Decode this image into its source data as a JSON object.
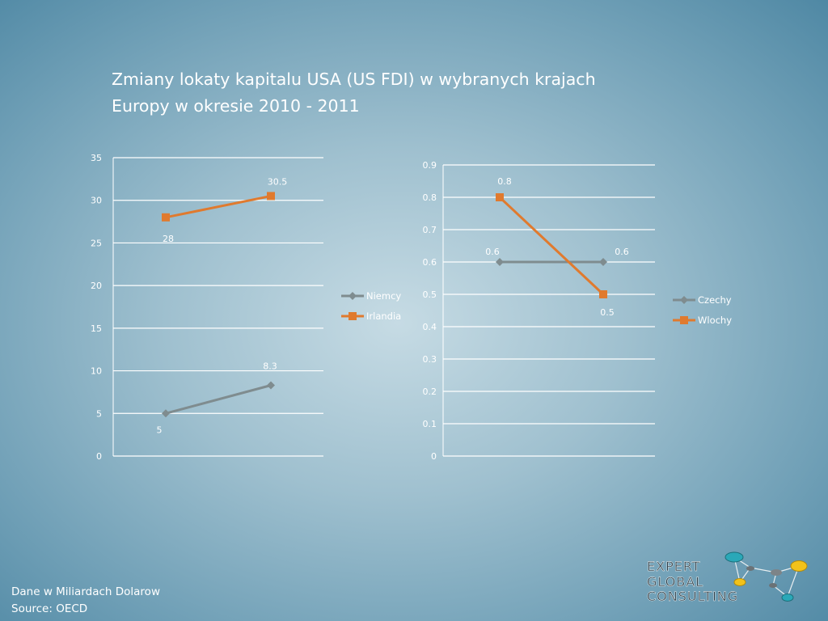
{
  "title_line1": "Zmiany lokaty kapitalu USA (US FDI) w wybranych krajach",
  "title_line2": "Europy w okresie 2010 - 2011",
  "footer": {
    "line1": "Dane w Miliardach Dolarow",
    "line2": "Source:  OECD"
  },
  "logo": {
    "line1": "EXPERT",
    "line2": "GLOBAL",
    "line3": "CONSULTING"
  },
  "colors": {
    "grey_series": "#7f8c8f",
    "orange_series": "#e07a2e"
  },
  "chart_data": [
    {
      "type": "line",
      "ylim": [
        0,
        35
      ],
      "yticks": [
        "0",
        "5",
        "10",
        "15",
        "20",
        "25",
        "30",
        "35"
      ],
      "series": [
        {
          "name": "Niemcy",
          "values": [
            5,
            8.3
          ],
          "labels": [
            "5",
            "8.3"
          ],
          "marker": "diamond",
          "color": "#7f8c8f"
        },
        {
          "name": "Irlandia",
          "values": [
            28,
            30.5
          ],
          "labels": [
            "28",
            "30.5"
          ],
          "marker": "square",
          "color": "#e07a2e"
        }
      ],
      "legend_position": "right"
    },
    {
      "type": "line",
      "ylim": [
        0,
        0.9
      ],
      "yticks": [
        "0",
        "0.1",
        "0.2",
        "0.3",
        "0.4",
        "0.5",
        "0.6",
        "0.7",
        "0.8",
        "0.9"
      ],
      "series": [
        {
          "name": "Czechy",
          "values": [
            0.6,
            0.6
          ],
          "labels": [
            "0.6",
            "0.6"
          ],
          "marker": "diamond",
          "color": "#7f8c8f"
        },
        {
          "name": "Wlochy",
          "values": [
            0.8,
            0.5
          ],
          "labels": [
            "0.8",
            "0.5"
          ],
          "marker": "square",
          "color": "#e07a2e"
        }
      ],
      "legend_position": "right"
    }
  ]
}
